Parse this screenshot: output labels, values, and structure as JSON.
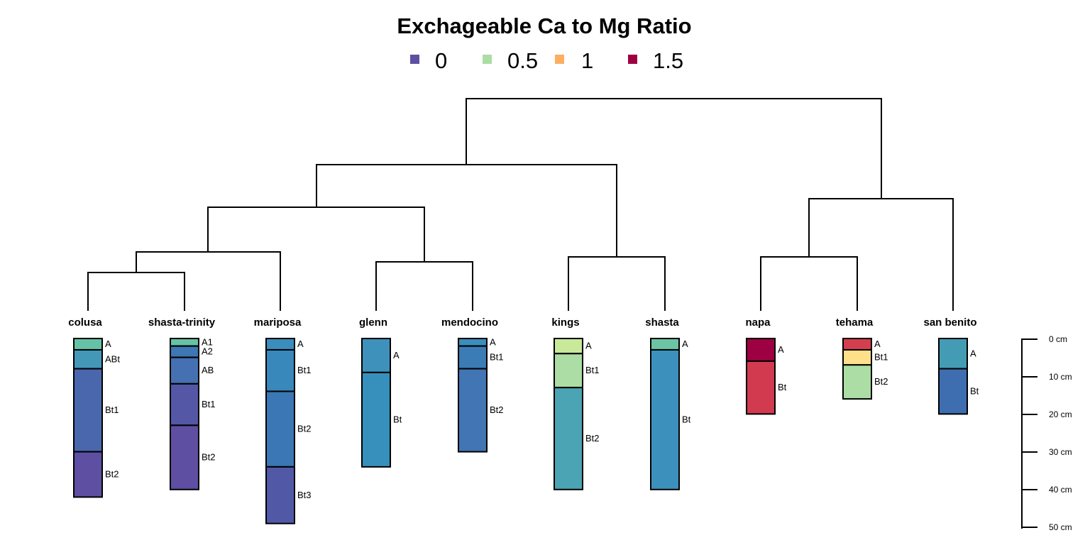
{
  "title": "Exchageable Ca to Mg Ratio",
  "legend": [
    {
      "label": "0",
      "color": "#5E4FA2"
    },
    {
      "label": "0.5",
      "color": "#ABDDA4"
    },
    {
      "label": "1",
      "color": "#FDAE61"
    },
    {
      "label": "1.5",
      "color": "#9E0142"
    }
  ],
  "depth_scale": {
    "labels": [
      "0 cm",
      "10 cm",
      "20 cm",
      "30 cm",
      "40 cm",
      "50 cm"
    ],
    "depths": [
      0,
      10,
      20,
      30,
      40,
      50
    ]
  },
  "profiles": [
    {
      "name": "colusa",
      "horizons": [
        {
          "name": "A",
          "top": 0,
          "bottom": 3,
          "color": "#66C2A5"
        },
        {
          "name": "ABt",
          "top": 3,
          "bottom": 8,
          "color": "#4398B8"
        },
        {
          "name": "Bt1",
          "top": 8,
          "bottom": 30,
          "color": "#4A67AE"
        },
        {
          "name": "Bt2",
          "top": 30,
          "bottom": 42,
          "color": "#5E4FA2"
        }
      ]
    },
    {
      "name": "shasta-trinity",
      "horizons": [
        {
          "name": "A1",
          "top": 0,
          "bottom": 2,
          "color": "#66C2A5"
        },
        {
          "name": "A2",
          "top": 2,
          "bottom": 5,
          "color": "#3D77B4"
        },
        {
          "name": "AB",
          "top": 5,
          "bottom": 12,
          "color": "#4570B1"
        },
        {
          "name": "Bt1",
          "top": 12,
          "bottom": 23,
          "color": "#5357A6"
        },
        {
          "name": "Bt2",
          "top": 23,
          "bottom": 40,
          "color": "#5E4FA2"
        }
      ]
    },
    {
      "name": "mariposa",
      "horizons": [
        {
          "name": "A",
          "top": 0,
          "bottom": 3,
          "color": "#3B8DBD"
        },
        {
          "name": "Bt1",
          "top": 3,
          "bottom": 14,
          "color": "#3888BB"
        },
        {
          "name": "Bt2",
          "top": 14,
          "bottom": 34,
          "color": "#3B77B4"
        },
        {
          "name": "Bt3",
          "top": 34,
          "bottom": 49,
          "color": "#5159A7"
        }
      ]
    },
    {
      "name": "glenn",
      "horizons": [
        {
          "name": "A",
          "top": 0,
          "bottom": 9,
          "color": "#3E91BB"
        },
        {
          "name": "Bt",
          "top": 9,
          "bottom": 34,
          "color": "#3790BB"
        }
      ]
    },
    {
      "name": "mendocino",
      "horizons": [
        {
          "name": "A",
          "top": 0,
          "bottom": 2,
          "color": "#3B8DBD"
        },
        {
          "name": "Bt1",
          "top": 2,
          "bottom": 8,
          "color": "#3B7CB6"
        },
        {
          "name": "Bt2",
          "top": 8,
          "bottom": 30,
          "color": "#4175B3"
        }
      ]
    },
    {
      "name": "kings",
      "horizons": [
        {
          "name": "A",
          "top": 0,
          "bottom": 4,
          "color": "#C8E99A"
        },
        {
          "name": "Bt1",
          "top": 4,
          "bottom": 13,
          "color": "#ABDDA4"
        },
        {
          "name": "Bt2",
          "top": 13,
          "bottom": 40,
          "color": "#4AA4B3"
        }
      ]
    },
    {
      "name": "shasta",
      "horizons": [
        {
          "name": "A",
          "top": 0,
          "bottom": 3,
          "color": "#6CC4A4"
        },
        {
          "name": "Bt",
          "top": 3,
          "bottom": 40,
          "color": "#3C91BC"
        }
      ]
    },
    {
      "name": "napa",
      "horizons": [
        {
          "name": "A",
          "top": 0,
          "bottom": 6,
          "color": "#9E0142"
        },
        {
          "name": "Bt",
          "top": 6,
          "bottom": 20,
          "color": "#D13A4F"
        }
      ]
    },
    {
      "name": "tehama",
      "horizons": [
        {
          "name": "A",
          "top": 0,
          "bottom": 3,
          "color": "#D53E4F"
        },
        {
          "name": "Bt1",
          "top": 3,
          "bottom": 7,
          "color": "#FEE08B"
        },
        {
          "name": "Bt2",
          "top": 7,
          "bottom": 16,
          "color": "#ABDDA4"
        }
      ]
    },
    {
      "name": "san benito",
      "horizons": [
        {
          "name": "A",
          "top": 0,
          "bottom": 8,
          "color": "#449CB4"
        },
        {
          "name": "Bt",
          "top": 8,
          "bottom": 20,
          "color": "#3E6EB0"
        }
      ]
    }
  ]
}
